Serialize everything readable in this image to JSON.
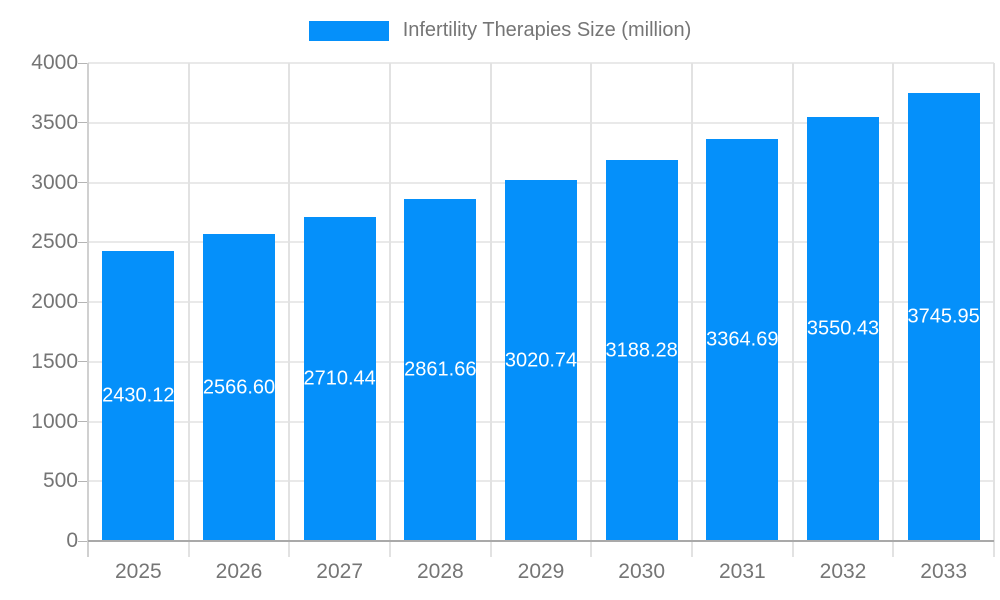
{
  "legend": {
    "label": "Infertility Therapies Size (million)"
  },
  "chart_data": {
    "type": "bar",
    "title": "Infertility Therapies Size (million)",
    "categories": [
      "2025",
      "2026",
      "2027",
      "2028",
      "2029",
      "2030",
      "2031",
      "2032",
      "2033"
    ],
    "series": [
      {
        "name": "Infertility Therapies Size (million)",
        "values": [
          2430.12,
          2566.6,
          2710.44,
          2861.66,
          3020.74,
          3188.28,
          3364.69,
          3550.43,
          3745.95
        ]
      }
    ],
    "value_labels": [
      "2430.12",
      "2566.60",
      "2710.44",
      "2861.66",
      "3020.74",
      "3188.28",
      "3364.69",
      "3550.43",
      "3745.95"
    ],
    "xlabel": "",
    "ylabel": "",
    "ylim": [
      0,
      4000
    ],
    "yticks": [
      0,
      500,
      1000,
      1500,
      2000,
      2500,
      3000,
      3500,
      4000
    ],
    "grid": true,
    "legend_position": "top-center",
    "colors": {
      "bar": "#0590fa",
      "value_label": "#ffffff",
      "axis_text": "#757575",
      "title_text": "#757575",
      "grid_h": "#e9e9e9",
      "grid_v": "#e2e2e2",
      "baseline": "#a9a9a9",
      "background": "#ffffff"
    }
  }
}
